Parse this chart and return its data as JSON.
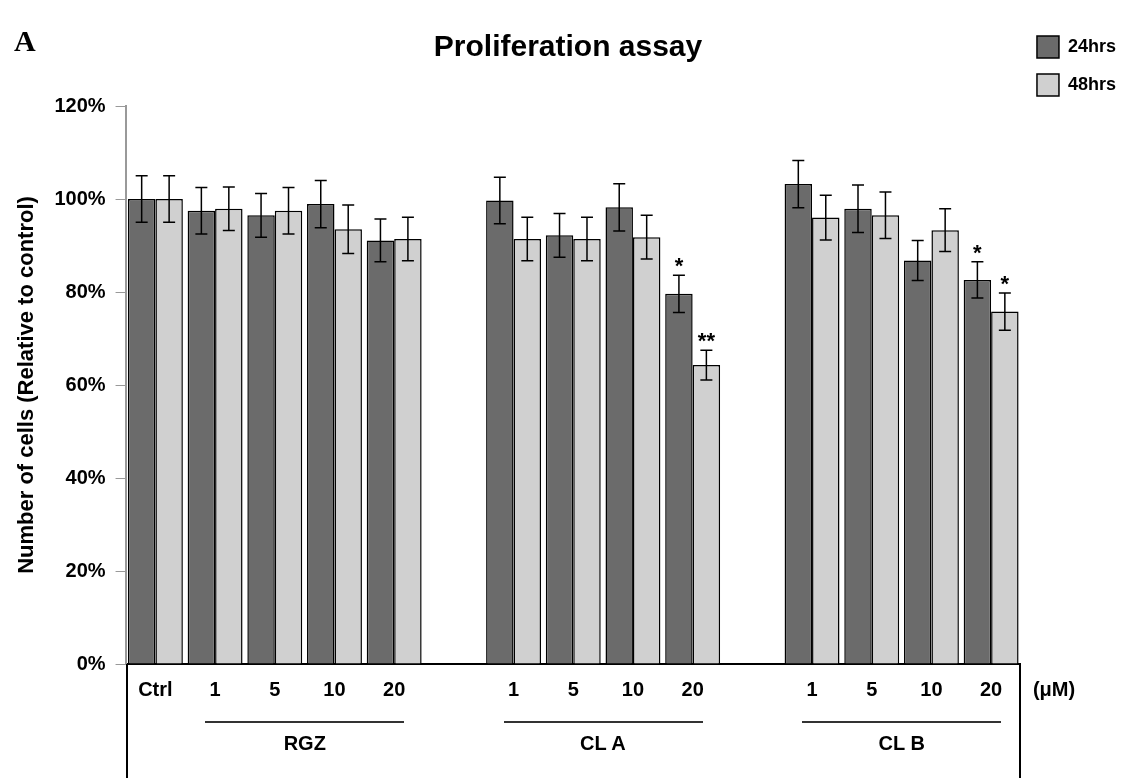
{
  "chart_data": {
    "type": "bar",
    "title": "Proliferation assay",
    "ylabel": "Number of cells (Relative to control)",
    "categories": [
      "Ctrl",
      "1",
      "5",
      "10",
      "20",
      null,
      "1",
      "5",
      "10",
      "20",
      null,
      "1",
      "5",
      "10",
      "20"
    ],
    "series": [
      {
        "name": "24hrs",
        "color": "#6b6b6b",
        "values": [
          100,
          97.5,
          96.5,
          98.9,
          91.1,
          null,
          99.7,
          92.2,
          98.2,
          79.6,
          null,
          103.2,
          97.9,
          86.8,
          82.6
        ],
        "errors": [
          5,
          5,
          4.7,
          5.1,
          4.6,
          null,
          5,
          4.7,
          5.1,
          4,
          null,
          5.1,
          5.1,
          4.3,
          3.9
        ],
        "value_labels": [
          null,
          null,
          null,
          null,
          null,
          null,
          null,
          null,
          null,
          "*",
          null,
          null,
          null,
          null,
          "*"
        ]
      },
      {
        "name": "48hrs",
        "color": "#d0d0d0",
        "values": [
          100,
          97.9,
          97.5,
          93.5,
          91.4,
          null,
          91.4,
          91.4,
          91.8,
          64.3,
          null,
          96,
          96.5,
          93.3,
          75.8
        ],
        "errors": [
          5,
          4.7,
          5,
          5.2,
          4.7,
          null,
          4.7,
          4.7,
          4.7,
          3.2,
          null,
          4.8,
          5,
          4.6,
          4
        ],
        "value_labels": [
          null,
          null,
          null,
          null,
          null,
          null,
          null,
          null,
          null,
          "**",
          null,
          null,
          null,
          null,
          "*"
        ]
      }
    ],
    "ylim": [
      0,
      120
    ],
    "yticks": [
      {
        "value": 0,
        "label": "0%"
      },
      {
        "value": 20,
        "label": "20%"
      },
      {
        "value": 40,
        "label": "40%"
      },
      {
        "value": 60,
        "label": "60%"
      },
      {
        "value": 80,
        "label": "80%"
      },
      {
        "value": 100,
        "label": "100%"
      },
      {
        "value": 120,
        "label": "120%"
      }
    ],
    "grid": false,
    "legend": "right",
    "annotations": [
      "A",
      "(μM)",
      "RGZ",
      "CL A",
      "CL B"
    ]
  }
}
